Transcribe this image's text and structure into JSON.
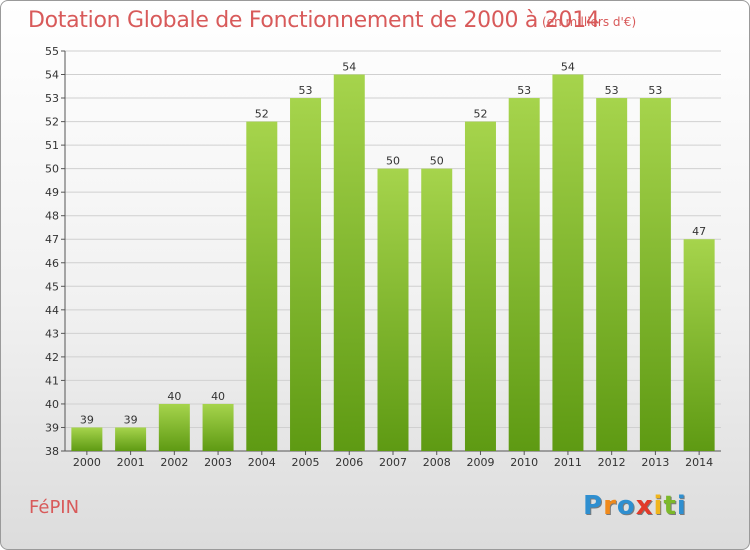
{
  "title": "Dotation Globale de Fonctionnement de 2000 à 2014",
  "subtitle": "(en milliers d'€)",
  "commune": "FéPIN",
  "logo": {
    "letters": [
      "P",
      "r",
      "o",
      "x",
      "i",
      "t",
      "i"
    ],
    "colors": [
      "#2f8fd0",
      "#f08a1c",
      "#2f8fd0",
      "#e23a2a",
      "#f0b51c",
      "#7cb82a",
      "#2f8fd0"
    ]
  },
  "colors": {
    "bar_top": "#a6d44c",
    "bar_bottom": "#5e9a13",
    "title": "#d85a5a",
    "grid": "#d0d0d0"
  },
  "chart_data": {
    "type": "bar",
    "categories": [
      "2000",
      "2001",
      "2002",
      "2003",
      "2004",
      "2005",
      "2006",
      "2007",
      "2008",
      "2009",
      "2010",
      "2011",
      "2012",
      "2013",
      "2014"
    ],
    "values": [
      39,
      39,
      40,
      40,
      52,
      53,
      54,
      50,
      50,
      52,
      53,
      54,
      53,
      53,
      47
    ],
    "ylim": [
      38,
      55
    ],
    "yticks": [
      38,
      39,
      40,
      41,
      42,
      43,
      44,
      45,
      46,
      47,
      48,
      49,
      50,
      51,
      52,
      53,
      54,
      55
    ],
    "grid": true,
    "xlabel": "",
    "ylabel": ""
  }
}
